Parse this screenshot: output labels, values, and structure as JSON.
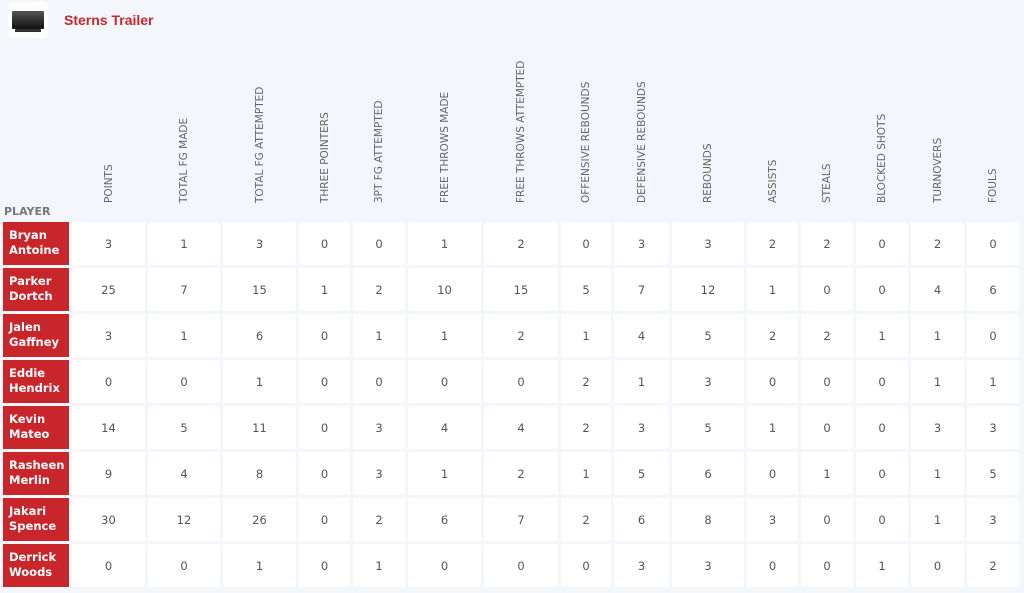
{
  "team": {
    "name": "Sterns Trailer",
    "logo_icon": "trailer-truck-image"
  },
  "player_header": "PLAYER",
  "columns": [
    "POINTS",
    "TOTAL FG MADE",
    "TOTAL FG ATTEMPTED",
    "THREE POINTERS",
    "3PT FG ATTEMPTED",
    "FREE THROWS MADE",
    "FREE THROWS ATTEMPTED",
    "OFFENSIVE REBOUNDS",
    "DEFENSIVE REBOUNDS",
    "REBOUNDS",
    "ASSISTS",
    "STEALS",
    "BLOCKED SHOTS",
    "TURNOVERS",
    "FOULS"
  ],
  "rows": [
    {
      "player": "Bryan\nAntoine",
      "stats": [
        "3",
        "1",
        "3",
        "0",
        "0",
        "1",
        "2",
        "0",
        "3",
        "3",
        "2",
        "2",
        "0",
        "2",
        "0"
      ]
    },
    {
      "player": "Parker\nDortch",
      "stats": [
        "25",
        "7",
        "15",
        "1",
        "2",
        "10",
        "15",
        "5",
        "7",
        "12",
        "1",
        "0",
        "0",
        "4",
        "6"
      ]
    },
    {
      "player": "Jalen\nGaffney",
      "stats": [
        "3",
        "1",
        "6",
        "0",
        "1",
        "1",
        "2",
        "1",
        "4",
        "5",
        "2",
        "2",
        "1",
        "1",
        "0"
      ]
    },
    {
      "player": "Eddie\nHendrix",
      "stats": [
        "0",
        "0",
        "1",
        "0",
        "0",
        "0",
        "0",
        "2",
        "1",
        "3",
        "0",
        "0",
        "0",
        "1",
        "1"
      ]
    },
    {
      "player": "Kevin\nMateo",
      "stats": [
        "14",
        "5",
        "11",
        "0",
        "3",
        "4",
        "4",
        "2",
        "3",
        "5",
        "1",
        "0",
        "0",
        "3",
        "3"
      ]
    },
    {
      "player": "Rasheen\nMerlin",
      "stats": [
        "9",
        "4",
        "8",
        "0",
        "3",
        "1",
        "2",
        "1",
        "5",
        "6",
        "0",
        "1",
        "0",
        "1",
        "5"
      ]
    },
    {
      "player": "Jakari\nSpence",
      "stats": [
        "30",
        "12",
        "26",
        "0",
        "2",
        "6",
        "7",
        "2",
        "6",
        "8",
        "3",
        "0",
        "0",
        "1",
        "3"
      ]
    },
    {
      "player": "Derrick\nWoods",
      "stats": [
        "0",
        "0",
        "1",
        "0",
        "1",
        "0",
        "0",
        "0",
        "3",
        "3",
        "0",
        "0",
        "1",
        "0",
        "2"
      ]
    }
  ],
  "colors": {
    "accent": "#c9262b",
    "background": "#f3f6fa"
  }
}
